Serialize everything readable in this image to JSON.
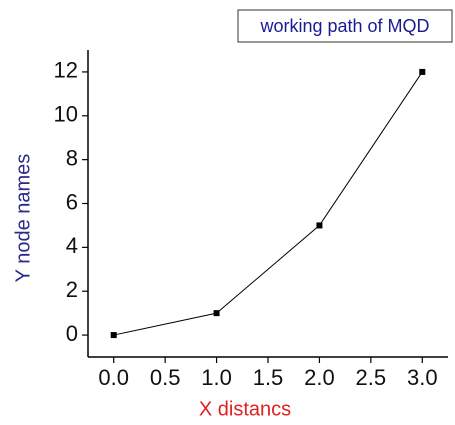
{
  "chart_data": {
    "type": "line",
    "x_label": "X distancs",
    "y_label": "Y node names",
    "x": [
      0,
      1,
      2,
      3
    ],
    "series": [
      {
        "name": "working path of MQD",
        "color": "#000000",
        "values": [
          0,
          1,
          5,
          12
        ]
      }
    ],
    "xlim": [
      -0.25,
      3.25
    ],
    "ylim": [
      -1,
      13
    ],
    "xticks": [
      {
        "value": 0,
        "label": "0.0"
      },
      {
        "value": 0.5,
        "label": "0.5"
      },
      {
        "value": 1,
        "label": "1.0"
      },
      {
        "value": 1.5,
        "label": "1.5"
      },
      {
        "value": 2,
        "label": "2.0"
      },
      {
        "value": 2.5,
        "label": "2.5"
      },
      {
        "value": 3,
        "label": "3.0"
      }
    ],
    "yticks": [
      0,
      2,
      4,
      6,
      8,
      10,
      12
    ],
    "legend": "upper right",
    "grid": false
  }
}
